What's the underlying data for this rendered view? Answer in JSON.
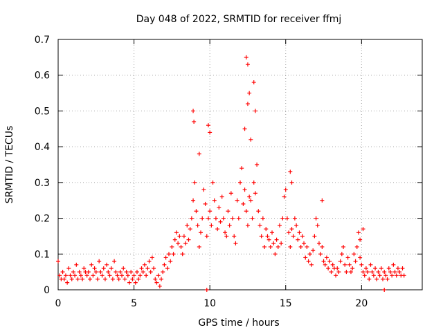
{
  "chart_data": {
    "type": "scatter",
    "title": "Day 048 of 2022, SRMTID for receiver ffmj",
    "xlabel": "GPS time / hours",
    "ylabel": "SRMTID / TECUs",
    "xlim": [
      0,
      24
    ],
    "ylim": [
      0,
      0.7
    ],
    "xticks": [
      0,
      5,
      10,
      15,
      20
    ],
    "yticks": [
      0,
      0.1,
      0.2,
      0.3,
      0.4,
      0.5,
      0.6,
      0.7
    ],
    "xtick_labels": [
      "0",
      "5",
      "10",
      "15",
      "20"
    ],
    "ytick_labels": [
      "0",
      "0.1",
      "0.2",
      "0.3",
      "0.4",
      "0.5",
      "0.6",
      "0.7"
    ],
    "grid": true,
    "marker": "+",
    "color": "#ff0000",
    "series": [
      {
        "name": "SRMTID",
        "x": [
          0.0,
          0.1,
          0.2,
          0.3,
          0.4,
          0.5,
          0.6,
          0.7,
          0.8,
          0.9,
          1.0,
          1.1,
          1.2,
          1.3,
          1.4,
          1.5,
          1.6,
          1.7,
          1.8,
          1.9,
          2.0,
          2.1,
          2.2,
          2.3,
          2.4,
          2.5,
          2.6,
          2.7,
          2.8,
          2.9,
          3.0,
          3.1,
          3.2,
          3.3,
          3.4,
          3.5,
          3.6,
          3.7,
          3.8,
          3.9,
          4.0,
          4.1,
          4.2,
          4.3,
          4.4,
          4.5,
          4.6,
          4.7,
          4.8,
          4.9,
          5.0,
          5.1,
          5.2,
          5.3,
          5.4,
          5.5,
          5.6,
          5.7,
          5.8,
          5.9,
          6.0,
          6.1,
          6.2,
          6.3,
          6.4,
          6.5,
          6.6,
          6.7,
          6.8,
          6.9,
          7.0,
          7.1,
          7.2,
          7.3,
          7.4,
          7.5,
          7.6,
          7.7,
          7.8,
          7.9,
          8.0,
          8.1,
          8.2,
          8.3,
          8.4,
          8.5,
          8.6,
          8.7,
          8.8,
          8.9,
          9.0,
          9.1,
          9.2,
          9.3,
          9.4,
          9.5,
          9.6,
          9.7,
          9.8,
          9.9,
          10.0,
          10.1,
          10.2,
          10.3,
          10.4,
          10.5,
          10.6,
          10.7,
          10.8,
          10.9,
          11.0,
          11.1,
          11.2,
          11.3,
          11.4,
          11.5,
          11.6,
          11.7,
          11.8,
          11.9,
          12.0,
          12.1,
          12.2,
          12.3,
          12.4,
          12.5,
          12.6,
          12.7,
          12.8,
          12.9,
          13.0,
          13.1,
          13.2,
          13.3,
          13.4,
          13.5,
          13.6,
          13.7,
          13.8,
          13.9,
          14.0,
          14.1,
          14.2,
          14.3,
          14.4,
          14.5,
          14.6,
          14.7,
          14.8,
          14.9,
          15.0,
          15.1,
          15.2,
          15.3,
          15.4,
          15.5,
          15.6,
          15.7,
          15.8,
          15.9,
          16.0,
          16.1,
          16.2,
          16.3,
          16.4,
          16.5,
          16.6,
          16.7,
          16.8,
          16.9,
          17.0,
          17.1,
          17.2,
          17.3,
          17.4,
          17.5,
          17.6,
          17.7,
          17.8,
          17.9,
          18.0,
          18.1,
          18.2,
          18.3,
          18.4,
          18.5,
          18.6,
          18.7,
          18.8,
          18.9,
          19.0,
          19.1,
          19.2,
          19.3,
          19.4,
          19.5,
          19.6,
          19.7,
          19.8,
          19.9,
          20.0,
          20.1,
          20.2,
          20.3,
          20.4,
          20.5,
          20.6,
          20.7,
          20.8,
          20.9,
          21.0,
          21.1,
          21.2,
          21.3,
          21.4,
          21.5,
          21.6,
          21.7,
          21.8,
          21.9,
          22.0,
          22.1,
          22.2,
          22.3,
          22.4,
          22.5,
          22.6,
          22.7,
          22.8,
          8.9,
          8.95,
          9.3,
          9.9,
          10.0,
          12.4,
          12.5,
          12.6,
          12.5,
          12.9,
          13.0,
          12.3,
          12.7,
          15.3,
          15.4,
          17.4,
          20.1,
          19.9,
          21.5,
          9.8
        ],
        "y": [
          0.08,
          0.04,
          0.03,
          0.05,
          0.03,
          0.04,
          0.02,
          0.06,
          0.04,
          0.03,
          0.05,
          0.04,
          0.07,
          0.03,
          0.05,
          0.04,
          0.03,
          0.06,
          0.05,
          0.04,
          0.05,
          0.03,
          0.07,
          0.04,
          0.06,
          0.05,
          0.03,
          0.08,
          0.05,
          0.04,
          0.06,
          0.03,
          0.07,
          0.05,
          0.04,
          0.06,
          0.03,
          0.08,
          0.05,
          0.04,
          0.03,
          0.05,
          0.04,
          0.06,
          0.03,
          0.05,
          0.04,
          0.02,
          0.05,
          0.03,
          0.04,
          0.02,
          0.05,
          0.03,
          0.04,
          0.06,
          0.05,
          0.07,
          0.04,
          0.06,
          0.08,
          0.05,
          0.09,
          0.06,
          0.03,
          0.02,
          0.04,
          0.01,
          0.03,
          0.05,
          0.07,
          0.09,
          0.06,
          0.1,
          0.08,
          0.12,
          0.1,
          0.14,
          0.16,
          0.13,
          0.15,
          0.12,
          0.1,
          0.15,
          0.13,
          0.18,
          0.14,
          0.17,
          0.2,
          0.25,
          0.3,
          0.22,
          0.18,
          0.12,
          0.16,
          0.2,
          0.28,
          0.24,
          0.15,
          0.2,
          0.22,
          0.18,
          0.3,
          0.25,
          0.2,
          0.17,
          0.23,
          0.19,
          0.26,
          0.2,
          0.16,
          0.15,
          0.22,
          0.18,
          0.27,
          0.2,
          0.15,
          0.13,
          0.25,
          0.2,
          0.3,
          0.34,
          0.24,
          0.28,
          0.22,
          0.18,
          0.26,
          0.25,
          0.2,
          0.3,
          0.27,
          0.35,
          0.22,
          0.18,
          0.15,
          0.2,
          0.12,
          0.17,
          0.15,
          0.14,
          0.12,
          0.16,
          0.13,
          0.1,
          0.14,
          0.12,
          0.18,
          0.13,
          0.2,
          0.26,
          0.28,
          0.2,
          0.16,
          0.12,
          0.17,
          0.15,
          0.2,
          0.18,
          0.14,
          0.16,
          0.12,
          0.15,
          0.13,
          0.09,
          0.12,
          0.08,
          0.1,
          0.07,
          0.11,
          0.15,
          0.2,
          0.18,
          0.13,
          0.1,
          0.12,
          0.08,
          0.07,
          0.09,
          0.06,
          0.08,
          0.05,
          0.07,
          0.06,
          0.04,
          0.06,
          0.05,
          0.08,
          0.1,
          0.12,
          0.07,
          0.05,
          0.09,
          0.07,
          0.05,
          0.06,
          0.1,
          0.08,
          0.12,
          0.16,
          0.09,
          0.07,
          0.05,
          0.04,
          0.06,
          0.05,
          0.03,
          0.07,
          0.05,
          0.04,
          0.06,
          0.03,
          0.05,
          0.04,
          0.06,
          0.03,
          0.05,
          0.04,
          0.03,
          0.06,
          0.05,
          0.04,
          0.07,
          0.05,
          0.04,
          0.06,
          0.05,
          0.04,
          0.06,
          0.04,
          0.5,
          0.47,
          0.38,
          0.46,
          0.44,
          0.65,
          0.63,
          0.55,
          0.52,
          0.58,
          0.5,
          0.45,
          0.42,
          0.33,
          0.3,
          0.25,
          0.17,
          0.14,
          0.0,
          0.0
        ]
      }
    ]
  }
}
